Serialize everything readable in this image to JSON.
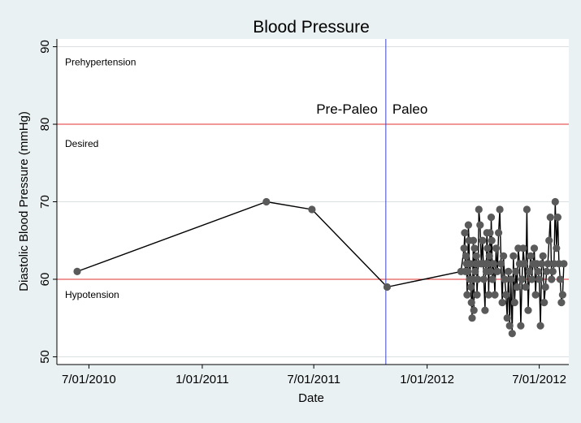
{
  "chart_data": {
    "type": "line",
    "title": "Blood Pressure",
    "xlabel": "Date",
    "ylabel": "Diastolic Blood Pressure (mmHg)",
    "xlim": [
      "2010-05-10",
      "2012-08-18"
    ],
    "ylim": [
      49,
      91
    ],
    "y_ticks": [
      50,
      60,
      70,
      80,
      90
    ],
    "x_ticks": [
      {
        "label": "7/01/2010",
        "date": "2010-07-01"
      },
      {
        "label": "1/01/2011",
        "date": "2011-01-01"
      },
      {
        "label": "7/01/2011",
        "date": "2011-07-01"
      },
      {
        "label": "1/01/2012",
        "date": "2012-01-01"
      },
      {
        "label": "7/01/2012",
        "date": "2012-07-01"
      }
    ],
    "grid": true,
    "reference_lines": {
      "horizontal": [
        {
          "value": 80,
          "color": "#e03030"
        },
        {
          "value": 60,
          "color": "#e03030"
        }
      ],
      "vertical": [
        {
          "date": "2011-10-26",
          "color": "#3a46c8"
        }
      ]
    },
    "annotations": {
      "zones": [
        {
          "text": "Prehypertension",
          "y": 88
        },
        {
          "text": "Desired",
          "y": 77.5
        },
        {
          "text": "Hypotension",
          "y": 58
        }
      ],
      "phases": [
        {
          "text": "Pre-Paleo",
          "side": "left",
          "y": 82
        },
        {
          "text": "Paleo",
          "side": "right",
          "y": 82
        }
      ]
    },
    "series": [
      {
        "name": "Diastolic",
        "color": "#000000",
        "marker_color": "#5a5a5a",
        "x": [
          "2010-06-12",
          "2011-04-15",
          "2011-06-28",
          "2011-10-28",
          "2012-02-25",
          "2012-03-01",
          "2012-03-02",
          "2012-03-03",
          "2012-03-04",
          "2012-03-05",
          "2012-03-06",
          "2012-03-07",
          "2012-03-08",
          "2012-03-09",
          "2012-03-10",
          "2012-03-11",
          "2012-03-12",
          "2012-03-13",
          "2012-03-14",
          "2012-03-15",
          "2012-03-16",
          "2012-03-17",
          "2012-03-18",
          "2012-03-19",
          "2012-03-20",
          "2012-03-21",
          "2012-03-22",
          "2012-03-23",
          "2012-03-24",
          "2012-03-25",
          "2012-03-27",
          "2012-03-29",
          "2012-03-31",
          "2012-04-02",
          "2012-04-04",
          "2012-04-05",
          "2012-04-06",
          "2012-04-07",
          "2012-04-08",
          "2012-04-09",
          "2012-04-10",
          "2012-04-11",
          "2012-04-12",
          "2012-04-13",
          "2012-04-14",
          "2012-04-15",
          "2012-04-16",
          "2012-04-18",
          "2012-04-20",
          "2012-04-22",
          "2012-04-24",
          "2012-04-26",
          "2012-04-28",
          "2012-04-30",
          "2012-05-02",
          "2012-05-04",
          "2012-05-06",
          "2012-05-08",
          "2012-05-10",
          "2012-05-12",
          "2012-05-14",
          "2012-05-16",
          "2012-05-18",
          "2012-05-20",
          "2012-05-22",
          "2012-05-24",
          "2012-05-26",
          "2012-05-28",
          "2012-05-30",
          "2012-06-01",
          "2012-06-03",
          "2012-06-05",
          "2012-06-07",
          "2012-06-09",
          "2012-06-11",
          "2012-06-13",
          "2012-06-15",
          "2012-06-17",
          "2012-06-19",
          "2012-06-21",
          "2012-06-23",
          "2012-06-25",
          "2012-06-27",
          "2012-06-29",
          "2012-07-01",
          "2012-07-03",
          "2012-07-05",
          "2012-07-07",
          "2012-07-09",
          "2012-07-11",
          "2012-07-13",
          "2012-07-15",
          "2012-07-17",
          "2012-07-19",
          "2012-07-21",
          "2012-07-23",
          "2012-07-25",
          "2012-07-27",
          "2012-07-29",
          "2012-07-31",
          "2012-08-02",
          "2012-08-04",
          "2012-08-06",
          "2012-08-08",
          "2012-08-10"
        ],
        "y": [
          61,
          70,
          69,
          59,
          61,
          64,
          66,
          61,
          63,
          62,
          58,
          61,
          67,
          65,
          60,
          62,
          59,
          57,
          55,
          60,
          65,
          56,
          64,
          61,
          62,
          63,
          58,
          60,
          62,
          69,
          67,
          62,
          65,
          60,
          56,
          62,
          61,
          66,
          64,
          62,
          58,
          63,
          66,
          61,
          68,
          65,
          60,
          62,
          58,
          64,
          61,
          66,
          69,
          62,
          57,
          63,
          60,
          58,
          55,
          61,
          54,
          60,
          53,
          63,
          57,
          61,
          59,
          64,
          62,
          54,
          60,
          64,
          62,
          59,
          69,
          56,
          61,
          63,
          60,
          62,
          64,
          58,
          62,
          61,
          60,
          54,
          62,
          63,
          57,
          59,
          61,
          62,
          65,
          68,
          60,
          61,
          62,
          70,
          64,
          68,
          62,
          60,
          57,
          58,
          62
        ]
      }
    ]
  }
}
